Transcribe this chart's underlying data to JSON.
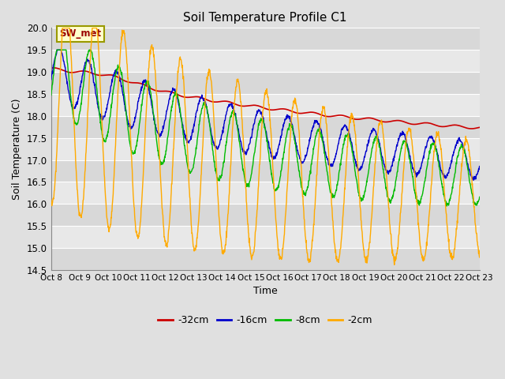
{
  "title": "Soil Temperature Profile C1",
  "xlabel": "Time",
  "ylabel": "Soil Temperature (C)",
  "ylim": [
    14.5,
    20.0
  ],
  "yticks": [
    14.5,
    15.0,
    15.5,
    16.0,
    16.5,
    17.0,
    17.5,
    18.0,
    18.5,
    19.0,
    19.5,
    20.0
  ],
  "xtick_labels": [
    "Oct 8",
    "Oct 9",
    "Oct 10",
    "Oct 11",
    "Oct 12",
    "Oct 13",
    "Oct 14",
    "Oct 15",
    "Oct 16",
    "Oct 17",
    "Oct 18",
    "Oct 19",
    "Oct 20",
    "Oct 21",
    "Oct 22",
    "Oct 23"
  ],
  "colors": {
    "-32cm": "#cc0000",
    "-16cm": "#0000cc",
    "-8cm": "#00bb00",
    "-2cm": "#ffaa00"
  },
  "annotation": "SW_met",
  "annotation_color": "#990000",
  "annotation_bg": "#ffffcc",
  "annotation_border": "#999900",
  "figure_bg": "#e0e0e0",
  "plot_bg": "#e8e8e8",
  "band_color1": "#e8e8e8",
  "band_color2": "#d8d8d8",
  "n_days": 15,
  "n_points": 1440
}
